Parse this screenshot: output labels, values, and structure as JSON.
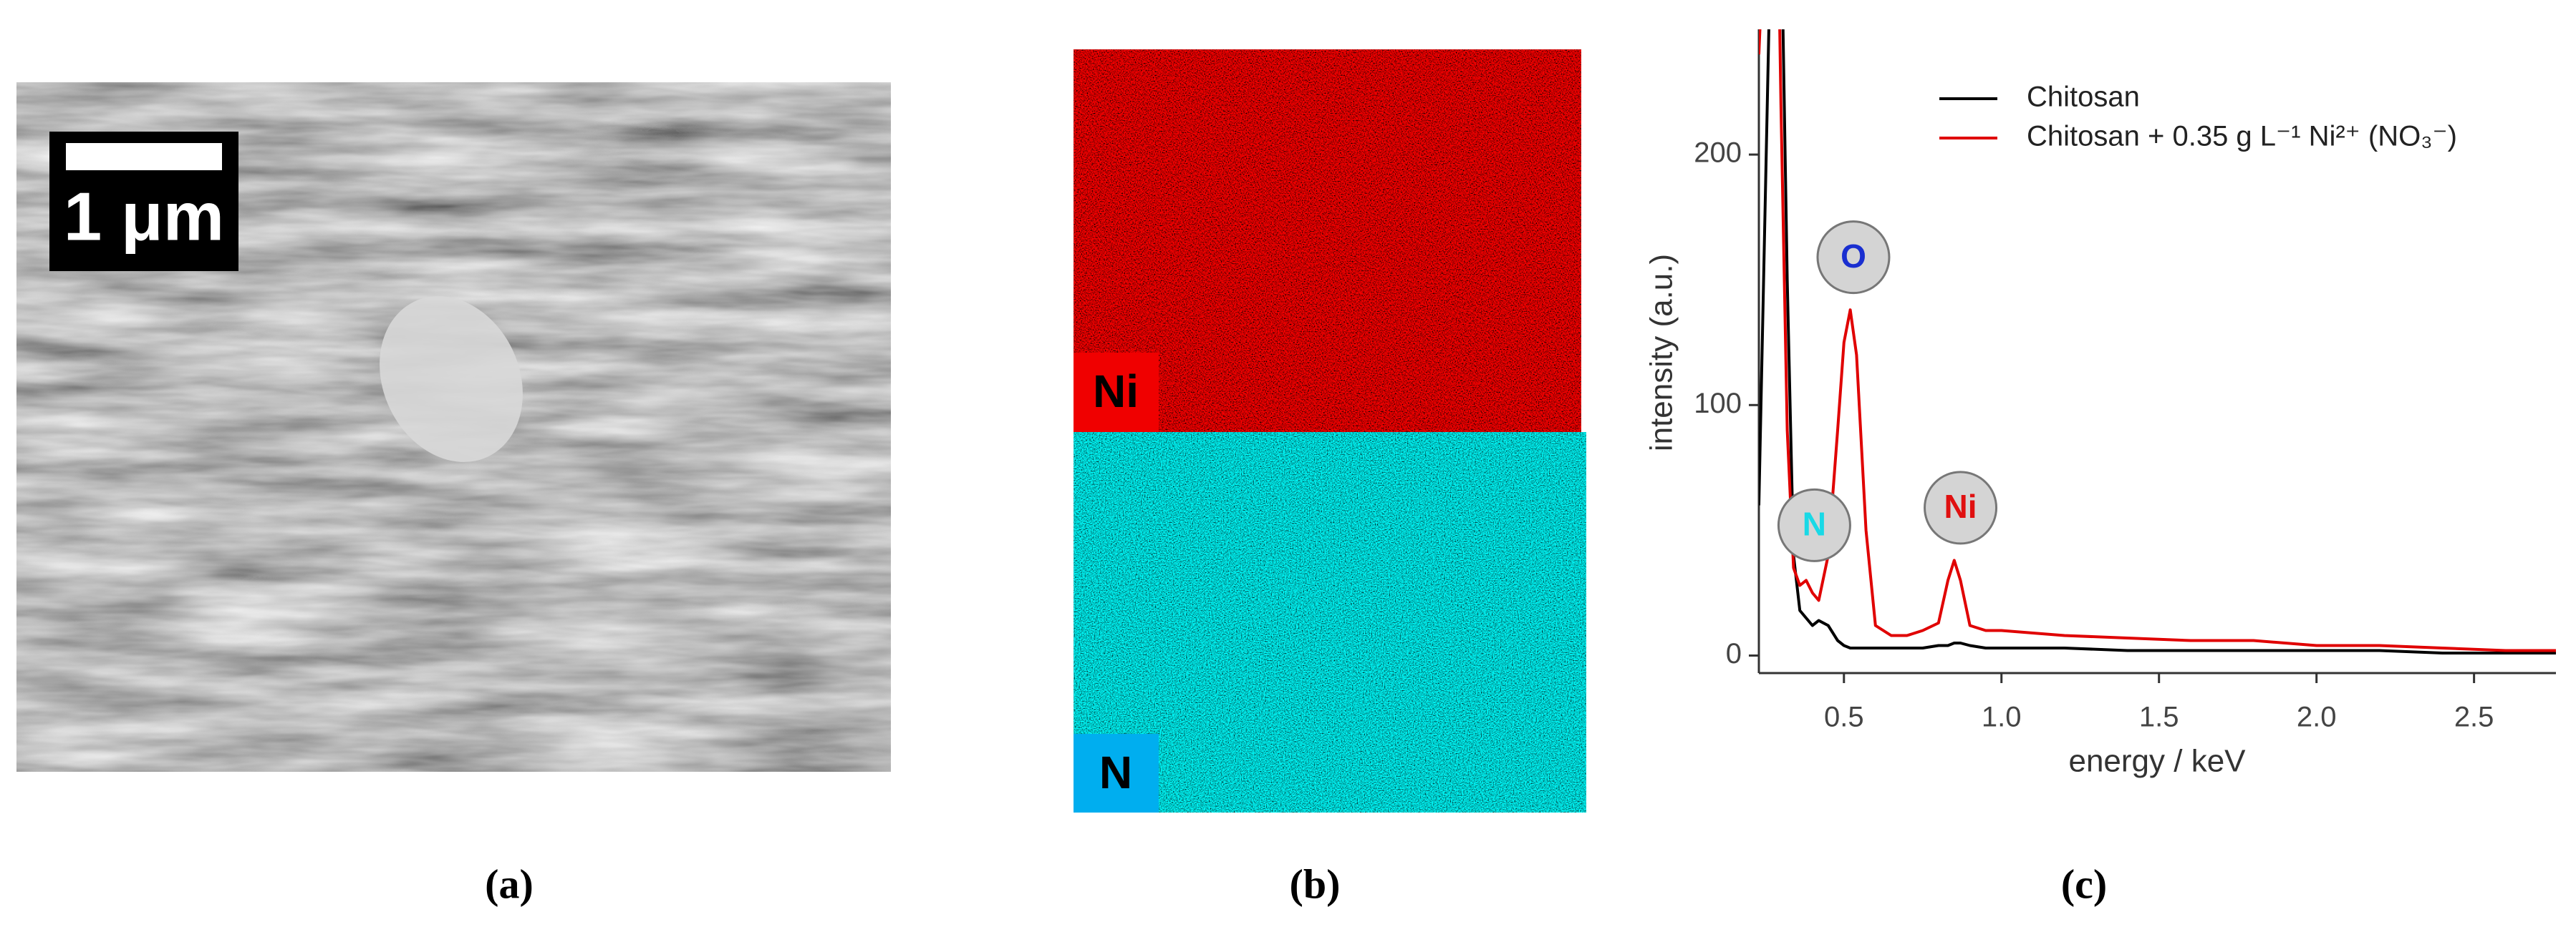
{
  "panels": {
    "a": {
      "caption": "(a)",
      "scale_bar": "1 μm"
    },
    "b": {
      "caption": "(b)",
      "maps": [
        "Ni",
        "N"
      ]
    },
    "c": {
      "caption": "(c)"
    }
  },
  "chart_data": {
    "type": "line",
    "x_label": "energy / keV",
    "y_label": "intensity (a.u.)",
    "x": [
      0.23,
      0.25,
      0.27,
      0.28,
      0.29,
      0.3,
      0.32,
      0.34,
      0.36,
      0.38,
      0.4,
      0.42,
      0.45,
      0.48,
      0.5,
      0.52,
      0.54,
      0.57,
      0.6,
      0.65,
      0.7,
      0.75,
      0.8,
      0.83,
      0.85,
      0.87,
      0.9,
      0.95,
      1.0,
      1.1,
      1.2,
      1.4,
      1.6,
      1.8,
      2.0,
      2.2,
      2.4,
      2.6,
      2.76
    ],
    "series": [
      {
        "name": "Chitosan",
        "color": "#000000",
        "values": [
          60,
          180,
          300,
          300,
          300,
          300,
          150,
          40,
          18,
          15,
          12,
          14,
          12,
          6,
          4,
          3,
          3,
          3,
          3,
          3,
          3,
          3,
          4,
          4,
          5,
          5,
          4,
          3,
          3,
          3,
          3,
          2,
          2,
          2,
          2,
          2,
          1,
          1,
          1
        ]
      },
      {
        "name": "Chitosan + 0.35 g L⁻¹ Ni²⁺ (NO₃⁻)",
        "color": "#e00000",
        "values": [
          240,
          300,
          300,
          300,
          300,
          220,
          90,
          35,
          28,
          30,
          25,
          22,
          40,
          90,
          125,
          138,
          120,
          50,
          12,
          8,
          8,
          10,
          13,
          30,
          38,
          30,
          12,
          10,
          10,
          9,
          8,
          7,
          6,
          6,
          4,
          4,
          3,
          2,
          2
        ]
      }
    ],
    "xlim": [
      0.23,
      2.76
    ],
    "ylim": [
      -7,
      250
    ],
    "xticks": [
      0.5,
      {
        "value": 1,
        "label": "1.0"
      },
      1.5,
      {
        "value": 2,
        "label": "2.0"
      },
      2.5
    ],
    "yticks": [
      0,
      100,
      200
    ],
    "legend": "upper right",
    "annotations": [
      {
        "text": "N",
        "color": "#19d9e6",
        "x": 0.406,
        "y": 52
      },
      {
        "text": "O",
        "color": "#1a2fd0",
        "x": 0.53,
        "y": 159
      },
      {
        "text": "Ni",
        "color": "#e01010",
        "x": 0.87,
        "y": 59
      }
    ]
  }
}
